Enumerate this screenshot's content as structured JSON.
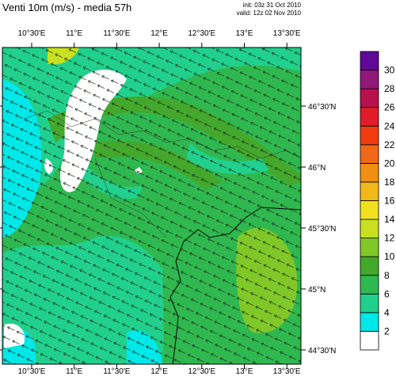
{
  "header": {
    "title": "Venti 10m (m/s) - media 57h",
    "init": "init: 03z 31 Oct 2010",
    "valid": "valid: 12z 02 Nov 2010"
  },
  "map": {
    "lon_labels": [
      "10°30'E",
      "11°E",
      "11°30'E",
      "12°E",
      "12°30'E",
      "13°E",
      "13°30'E"
    ],
    "lat_labels": [
      "46°30'N",
      "46°N",
      "45°30'N",
      "45°N",
      "44°30'N"
    ]
  },
  "colorbar": {
    "levels": [
      2,
      4,
      6,
      8,
      10,
      12,
      14,
      16,
      18,
      20,
      22,
      24,
      26,
      28,
      30
    ],
    "colors": [
      "#ffffff",
      "#00e8e8",
      "#20d08c",
      "#30b850",
      "#44a82c",
      "#80c828",
      "#c8e020",
      "#f0e020",
      "#f0b818",
      "#f09010",
      "#f06818",
      "#f03c10",
      "#e01c28",
      "#b8104c",
      "#901878",
      "#600898"
    ]
  }
}
